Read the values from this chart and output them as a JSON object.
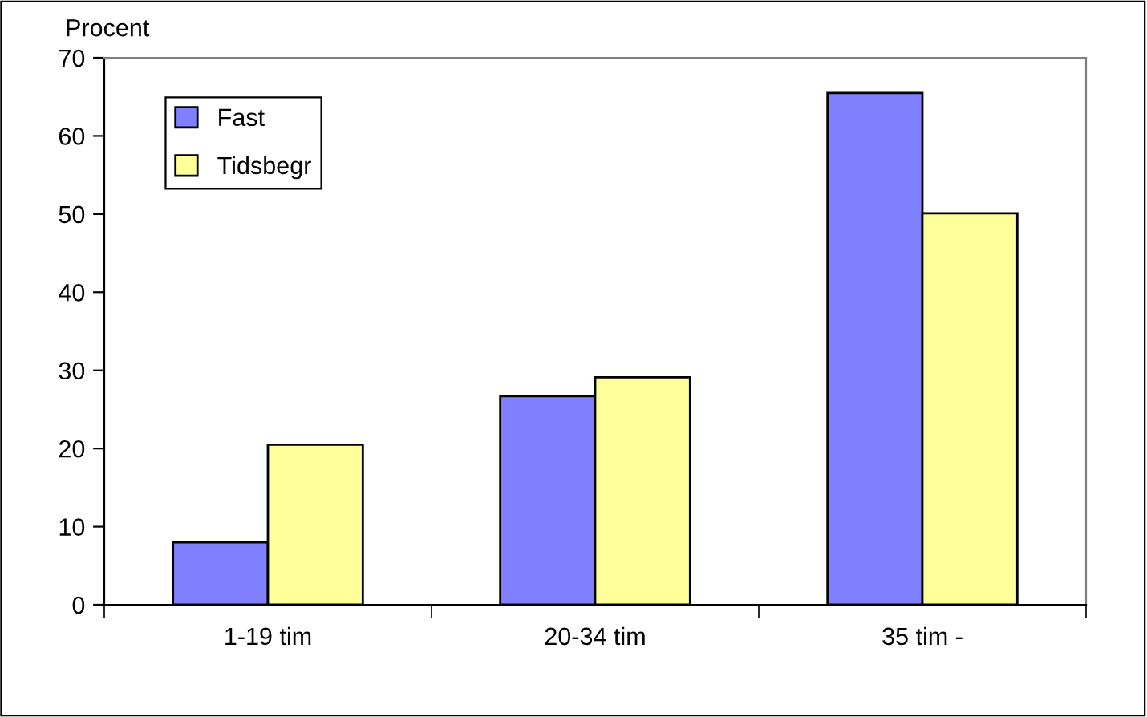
{
  "chart_data": {
    "type": "bar",
    "ylabel": "Procent",
    "categories": [
      "1-19 tim",
      "20-34 tim",
      "35 tim -"
    ],
    "series": [
      {
        "name": "Fast",
        "color": "#8080ff",
        "values": [
          8.0,
          26.7,
          65.5
        ]
      },
      {
        "name": "Tidsbegr",
        "color": "#ffff99",
        "values": [
          20.5,
          29.1,
          50.1
        ]
      }
    ],
    "ylim": [
      0,
      70
    ],
    "yticks": [
      0,
      10,
      20,
      30,
      40,
      50,
      60,
      70
    ],
    "grid": false,
    "legend": "top left"
  }
}
